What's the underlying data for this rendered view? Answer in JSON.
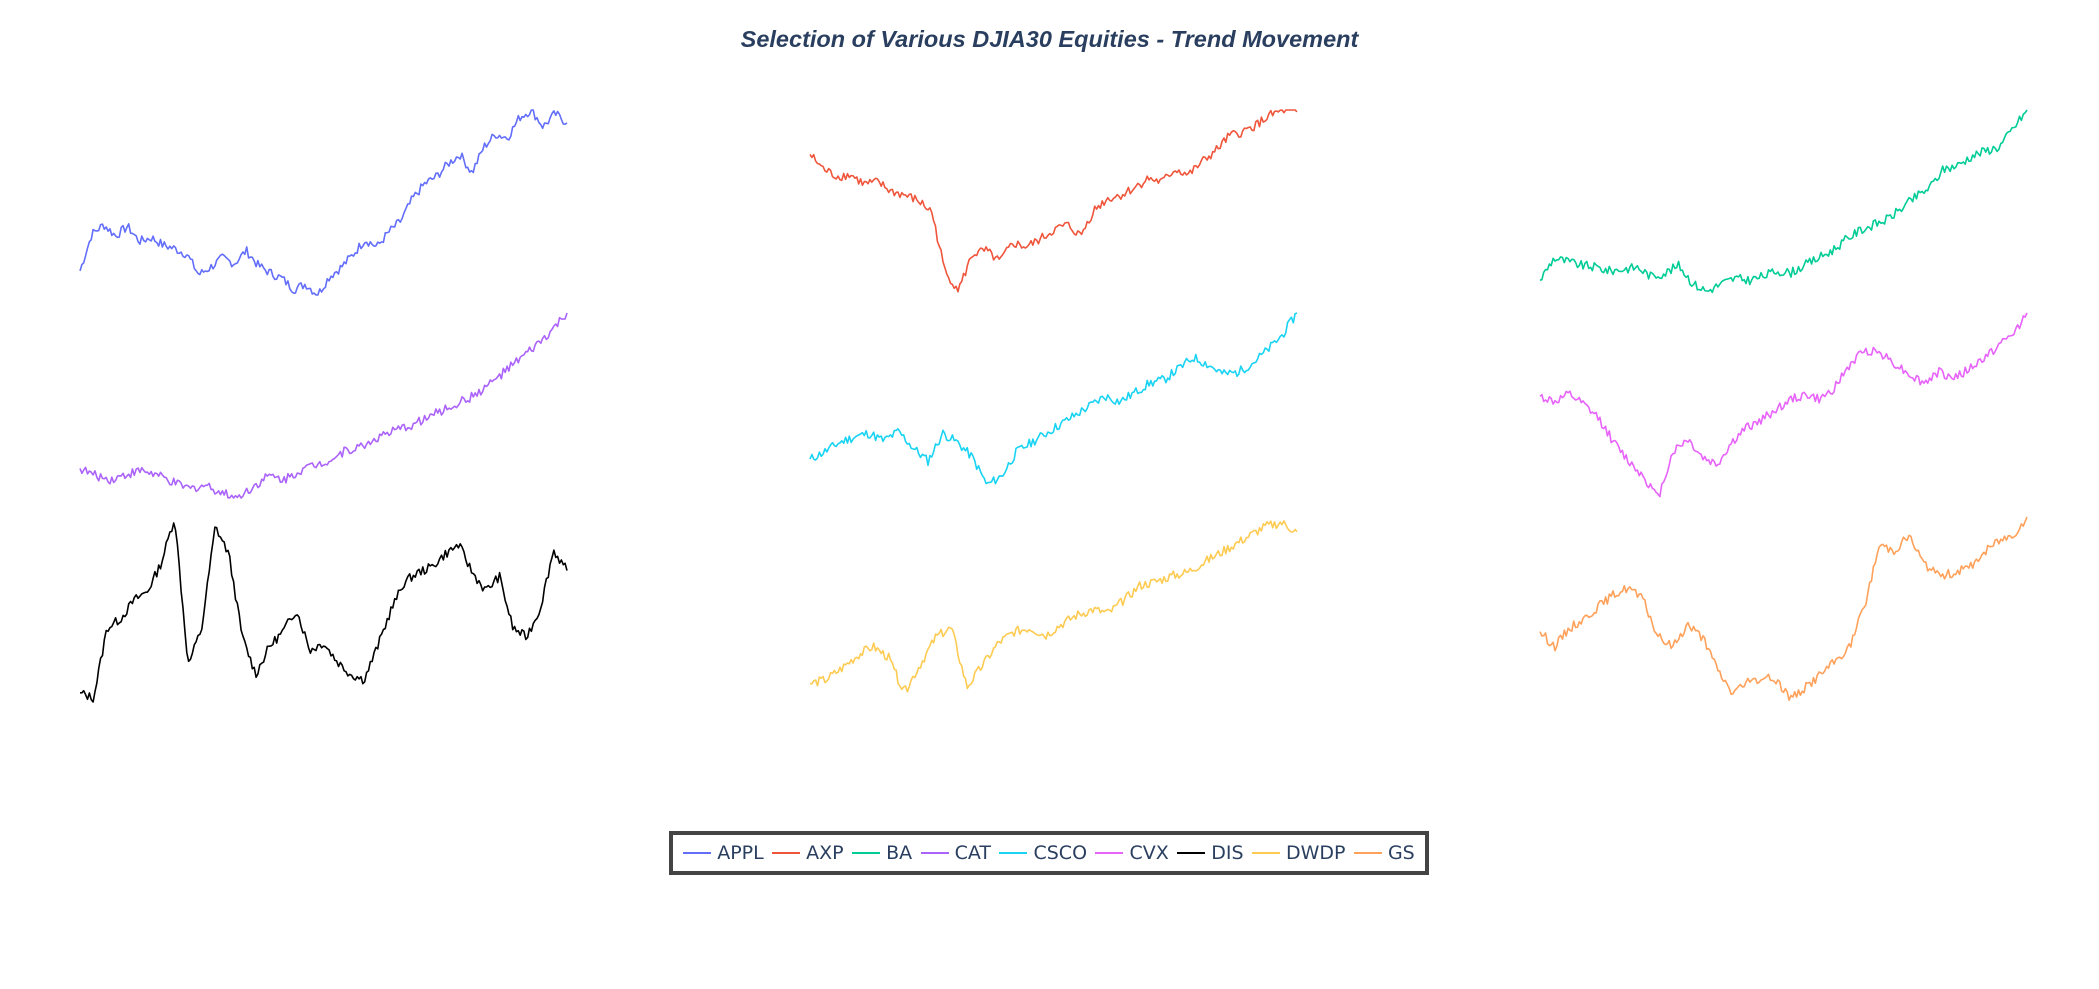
{
  "chart_data": {
    "type": "line",
    "title": "Selection of Various DJIA30 Equities - Trend Movement",
    "axes_visible": false,
    "grid": false,
    "legend_placement": "bottom-center",
    "layout": "3x3 small multiples",
    "series": [
      {
        "name": "APPL",
        "color": "#636efa",
        "values": [
          0.13,
          0.33,
          0.38,
          0.32,
          0.37,
          0.29,
          0.31,
          0.27,
          0.25,
          0.22,
          0.11,
          0.15,
          0.2,
          0.17,
          0.24,
          0.16,
          0.12,
          0.09,
          0.03,
          0.06,
          0.0,
          0.1,
          0.15,
          0.22,
          0.3,
          0.26,
          0.34,
          0.4,
          0.52,
          0.6,
          0.64,
          0.71,
          0.76,
          0.66,
          0.8,
          0.87,
          0.85,
          0.96,
          1.0,
          0.91,
          0.98,
          0.93
        ]
      },
      {
        "name": "AXP",
        "color": "#EF553B",
        "values": [
          0.76,
          0.68,
          0.64,
          0.65,
          0.6,
          0.61,
          0.56,
          0.54,
          0.51,
          0.45,
          0.12,
          0.03,
          0.22,
          0.24,
          0.18,
          0.28,
          0.26,
          0.3,
          0.35,
          0.38,
          0.32,
          0.46,
          0.52,
          0.54,
          0.58,
          0.63,
          0.61,
          0.68,
          0.65,
          0.72,
          0.78,
          0.86,
          0.88,
          0.92,
          0.97,
          1.0,
          0.99
        ]
      },
      {
        "name": "BA",
        "color": "#00cc96",
        "values": [
          0.08,
          0.2,
          0.18,
          0.16,
          0.15,
          0.13,
          0.14,
          0.15,
          0.1,
          0.12,
          0.16,
          0.06,
          0.02,
          0.06,
          0.09,
          0.08,
          0.1,
          0.13,
          0.12,
          0.16,
          0.2,
          0.24,
          0.3,
          0.35,
          0.38,
          0.41,
          0.47,
          0.53,
          0.58,
          0.68,
          0.7,
          0.75,
          0.78,
          0.8,
          0.9,
          1.0
        ]
      },
      {
        "name": "CAT",
        "color": "#ab63fa",
        "values": [
          0.16,
          0.12,
          0.1,
          0.13,
          0.15,
          0.12,
          0.08,
          0.05,
          0.07,
          0.03,
          0.0,
          0.06,
          0.12,
          0.1,
          0.15,
          0.18,
          0.21,
          0.26,
          0.28,
          0.33,
          0.36,
          0.39,
          0.43,
          0.47,
          0.51,
          0.55,
          0.61,
          0.68,
          0.75,
          0.82,
          0.9,
          1.0
        ]
      },
      {
        "name": "CSCO",
        "color": "#19d3f3",
        "values": [
          0.21,
          0.25,
          0.3,
          0.33,
          0.35,
          0.31,
          0.36,
          0.27,
          0.2,
          0.35,
          0.3,
          0.22,
          0.07,
          0.12,
          0.25,
          0.3,
          0.35,
          0.4,
          0.45,
          0.5,
          0.55,
          0.52,
          0.57,
          0.62,
          0.64,
          0.7,
          0.76,
          0.72,
          0.67,
          0.68,
          0.73,
          0.8,
          0.88,
          1.0
        ]
      },
      {
        "name": "CVX",
        "color": "#e763fa",
        "values": [
          0.55,
          0.52,
          0.56,
          0.5,
          0.43,
          0.3,
          0.2,
          0.12,
          0.0,
          0.25,
          0.32,
          0.22,
          0.18,
          0.3,
          0.38,
          0.42,
          0.48,
          0.53,
          0.56,
          0.53,
          0.6,
          0.72,
          0.8,
          0.79,
          0.73,
          0.67,
          0.62,
          0.68,
          0.65,
          0.69,
          0.75,
          0.82,
          0.88,
          1.0
        ]
      },
      {
        "name": "DIS",
        "color": "#000000",
        "values": [
          0.05,
          0.02,
          0.4,
          0.45,
          0.55,
          0.6,
          0.75,
          1.0,
          0.2,
          0.4,
          0.95,
          0.8,
          0.35,
          0.15,
          0.3,
          0.38,
          0.5,
          0.28,
          0.32,
          0.22,
          0.15,
          0.12,
          0.3,
          0.5,
          0.65,
          0.7,
          0.73,
          0.8,
          0.85,
          0.7,
          0.6,
          0.68,
          0.4,
          0.35,
          0.5,
          0.82,
          0.71
        ]
      },
      {
        "name": "DWDP",
        "color": "#FECB52",
        "values": [
          0.1,
          0.12,
          0.18,
          0.25,
          0.3,
          0.24,
          0.05,
          0.2,
          0.35,
          0.4,
          0.08,
          0.2,
          0.32,
          0.38,
          0.4,
          0.36,
          0.42,
          0.47,
          0.5,
          0.48,
          0.55,
          0.63,
          0.65,
          0.68,
          0.7,
          0.75,
          0.8,
          0.85,
          0.9,
          0.95,
          0.97,
          0.92
        ]
      },
      {
        "name": "GS",
        "color": "#FFA15A",
        "values": [
          0.38,
          0.3,
          0.4,
          0.45,
          0.52,
          0.58,
          0.62,
          0.55,
          0.35,
          0.3,
          0.42,
          0.35,
          0.18,
          0.05,
          0.1,
          0.13,
          0.12,
          0.02,
          0.08,
          0.15,
          0.22,
          0.3,
          0.52,
          0.85,
          0.82,
          0.9,
          0.75,
          0.68,
          0.7,
          0.72,
          0.8,
          0.87,
          0.9,
          1.0
        ]
      }
    ]
  }
}
